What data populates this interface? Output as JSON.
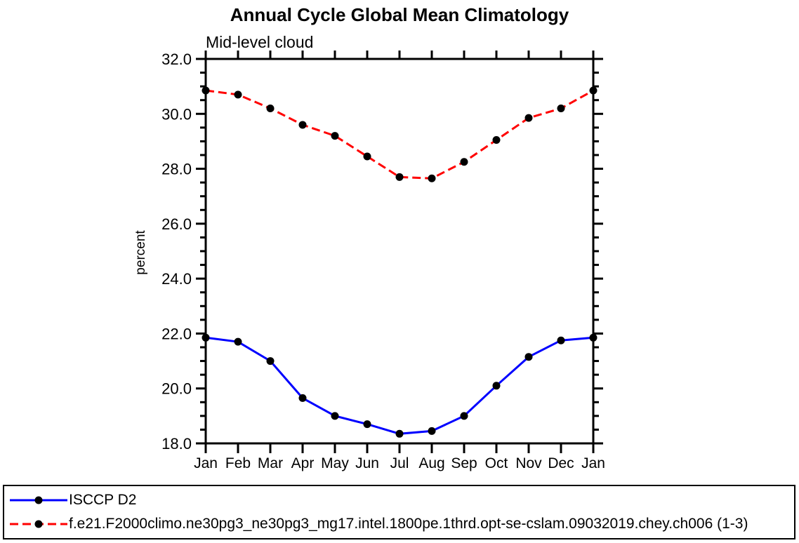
{
  "title": "Annual Cycle Global Mean Climatology",
  "subtitle": "Mid-level cloud",
  "ylabel": "percent",
  "legend": {
    "entries": [
      {
        "label": "ISCCP D2",
        "color": "#0000ff",
        "style": "solid",
        "marker": "black-dot"
      },
      {
        "label": "f.e21.F2000climo.ne30pg3_ne30pg3_mg17.intel.1800pe.1thrd.opt-se-cslam.09032019.chey.ch006 (1-3)",
        "color": "#ff0000",
        "style": "dashed",
        "marker": "black-dot"
      }
    ]
  },
  "chart_data": {
    "type": "line",
    "title": "Annual Cycle Global Mean Climatology",
    "subtitle": "Mid-level cloud",
    "xlabel": "",
    "ylabel": "percent",
    "x": [
      "Jan",
      "Feb",
      "Mar",
      "Apr",
      "May",
      "Jun",
      "Jul",
      "Aug",
      "Sep",
      "Oct",
      "Nov",
      "Dec",
      "Jan"
    ],
    "series": [
      {
        "name": "ISCCP D2",
        "color": "#0000ff",
        "style": "solid",
        "marker": "black-dot",
        "values": [
          21.85,
          21.7,
          21.0,
          19.65,
          19.0,
          18.7,
          18.35,
          18.45,
          19.0,
          20.1,
          21.15,
          21.75,
          21.85
        ]
      },
      {
        "name": "f.e21.F2000climo.ne30pg3_ne30pg3_mg17.intel.1800pe.1thrd.opt-se-cslam.09032019.chey.ch006 (1-3)",
        "color": "#ff0000",
        "style": "dashed",
        "marker": "black-dot",
        "values": [
          30.85,
          30.7,
          30.2,
          29.6,
          29.2,
          28.45,
          27.7,
          27.65,
          28.25,
          29.05,
          29.85,
          30.2,
          30.85
        ]
      }
    ],
    "ylim": [
      18.0,
      32.0
    ],
    "ytick_step": 2.0,
    "minor_tick_step": 0.5,
    "yticks": [
      "18.0",
      "20.0",
      "22.0",
      "24.0",
      "26.0",
      "28.0",
      "30.0",
      "32.0"
    ],
    "grid": false,
    "legend_position": "bottom-box"
  }
}
